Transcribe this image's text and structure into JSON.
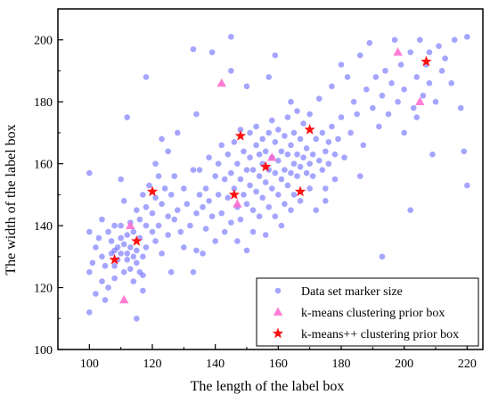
{
  "chart_data": {
    "type": "scatter",
    "xlabel": "The length of the label box",
    "ylabel": "The width of the label box",
    "xlim": [
      90,
      225
    ],
    "ylim": [
      100,
      210
    ],
    "xticks": [
      100,
      120,
      140,
      160,
      180,
      200,
      220
    ],
    "yticks": [
      100,
      120,
      140,
      160,
      180,
      200
    ],
    "grid": false,
    "legend_position": "bottom-right",
    "series": [
      {
        "name": "Data set marker size",
        "marker": "circle",
        "color": "#5b5bff",
        "points": [
          [
            100,
            157
          ],
          [
            100,
            138
          ],
          [
            101,
            128
          ],
          [
            100,
            125
          ],
          [
            100,
            112
          ],
          [
            102,
            118
          ],
          [
            102,
            133
          ],
          [
            103,
            136
          ],
          [
            104,
            130
          ],
          [
            104,
            142
          ],
          [
            104,
            122
          ],
          [
            105,
            127
          ],
          [
            105,
            116
          ],
          [
            106,
            120
          ],
          [
            106,
            138
          ],
          [
            107,
            135
          ],
          [
            107,
            131
          ],
          [
            108,
            127
          ],
          [
            108,
            140
          ],
          [
            108,
            123
          ],
          [
            109,
            133
          ],
          [
            109,
            129
          ],
          [
            110,
            136
          ],
          [
            110,
            131
          ],
          [
            110,
            140
          ],
          [
            111,
            125
          ],
          [
            111,
            134
          ],
          [
            111,
            148
          ],
          [
            112,
            129
          ],
          [
            112,
            137
          ],
          [
            112,
            131
          ],
          [
            113,
            126
          ],
          [
            113,
            141
          ],
          [
            113,
            133
          ],
          [
            114,
            138
          ],
          [
            114,
            130
          ],
          [
            114,
            122
          ],
          [
            115,
            132
          ],
          [
            115,
            145
          ],
          [
            115,
            128
          ],
          [
            115,
            110
          ],
          [
            116,
            136
          ],
          [
            116,
            142
          ],
          [
            116,
            125
          ],
          [
            117,
            130
          ],
          [
            117,
            150
          ],
          [
            117,
            119
          ],
          [
            118,
            133
          ],
          [
            118,
            146
          ],
          [
            118,
            140
          ],
          [
            118,
            188
          ],
          [
            119,
            153
          ],
          [
            120,
            138
          ],
          [
            120,
            144
          ],
          [
            121,
            149
          ],
          [
            121,
            135
          ],
          [
            122,
            156
          ],
          [
            122,
            140
          ],
          [
            123,
            147
          ],
          [
            123,
            131
          ],
          [
            124,
            152
          ],
          [
            125,
            143
          ],
          [
            125,
            137
          ],
          [
            126,
            150
          ],
          [
            126,
            125
          ],
          [
            127,
            142
          ],
          [
            127,
            156
          ],
          [
            128,
            145
          ],
          [
            129,
            138
          ],
          [
            130,
            152
          ],
          [
            130,
            133
          ],
          [
            131,
            147
          ],
          [
            132,
            140
          ],
          [
            133,
            158
          ],
          [
            133,
            125
          ],
          [
            134,
            144
          ],
          [
            134,
            132
          ],
          [
            135,
            150
          ],
          [
            135,
            158
          ],
          [
            136,
            146
          ],
          [
            136,
            131
          ],
          [
            137,
            152
          ],
          [
            137,
            139
          ],
          [
            138,
            162
          ],
          [
            138,
            148
          ],
          [
            139,
            143
          ],
          [
            139,
            196
          ],
          [
            140,
            156
          ],
          [
            140,
            135
          ],
          [
            141,
            150
          ],
          [
            141,
            160
          ],
          [
            142,
            144
          ],
          [
            142,
            166
          ],
          [
            143,
            155
          ],
          [
            143,
            138
          ],
          [
            144,
            149
          ],
          [
            144,
            163
          ],
          [
            145,
            157
          ],
          [
            145,
            141
          ],
          [
            145,
            201
          ],
          [
            146,
            152
          ],
          [
            146,
            167
          ],
          [
            147,
            146
          ],
          [
            147,
            160
          ],
          [
            147,
            135
          ],
          [
            148,
            155
          ],
          [
            148,
            171
          ],
          [
            148,
            142
          ],
          [
            149,
            150
          ],
          [
            149,
            164
          ],
          [
            150,
            158
          ],
          [
            150,
            147
          ],
          [
            150,
            132
          ],
          [
            151,
            162
          ],
          [
            151,
            153
          ],
          [
            151,
            170
          ],
          [
            152,
            145
          ],
          [
            152,
            158
          ],
          [
            152,
            138
          ],
          [
            153,
            166
          ],
          [
            153,
            151
          ],
          [
            153,
            172
          ],
          [
            154,
            156
          ],
          [
            154,
            163
          ],
          [
            154,
            143
          ],
          [
            155,
            160
          ],
          [
            155,
            149
          ],
          [
            155,
            168
          ],
          [
            156,
            154
          ],
          [
            156,
            164
          ],
          [
            156,
            137
          ],
          [
            157,
            158
          ],
          [
            157,
            170
          ],
          [
            157,
            146
          ],
          [
            158,
            152
          ],
          [
            158,
            162
          ],
          [
            158,
            174
          ],
          [
            159,
            157
          ],
          [
            159,
            143
          ],
          [
            159,
            167
          ],
          [
            160,
            161
          ],
          [
            160,
            150
          ],
          [
            160,
            171
          ],
          [
            161,
            155
          ],
          [
            161,
            164
          ],
          [
            161,
            140
          ],
          [
            162,
            158
          ],
          [
            162,
            169
          ],
          [
            162,
            147
          ],
          [
            163,
            163
          ],
          [
            163,
            153
          ],
          [
            163,
            175
          ],
          [
            164,
            157
          ],
          [
            164,
            166
          ],
          [
            164,
            145
          ],
          [
            165,
            160
          ],
          [
            165,
            170
          ],
          [
            165,
            150
          ],
          [
            166,
            163
          ],
          [
            166,
            156
          ],
          [
            166,
            177
          ],
          [
            167,
            159
          ],
          [
            167,
            168
          ],
          [
            167,
            148
          ],
          [
            168,
            162
          ],
          [
            168,
            173
          ],
          [
            169,
            157
          ],
          [
            169,
            165
          ],
          [
            170,
            160
          ],
          [
            170,
            152
          ],
          [
            170,
            176
          ],
          [
            171,
            163
          ],
          [
            171,
            156
          ],
          [
            172,
            168
          ],
          [
            172,
            145
          ],
          [
            173,
            161
          ],
          [
            173,
            181
          ],
          [
            174,
            158
          ],
          [
            174,
            170
          ],
          [
            175,
            164
          ],
          [
            175,
            152
          ],
          [
            176,
            167
          ],
          [
            176,
            160
          ],
          [
            177,
            185
          ],
          [
            177,
            172
          ],
          [
            178,
            163
          ],
          [
            178,
            155
          ],
          [
            179,
            168
          ],
          [
            180,
            175
          ],
          [
            180,
            192
          ],
          [
            181,
            162
          ],
          [
            182,
            188
          ],
          [
            183,
            170
          ],
          [
            184,
            180
          ],
          [
            185,
            176
          ],
          [
            186,
            195
          ],
          [
            187,
            166
          ],
          [
            188,
            184
          ],
          [
            189,
            199
          ],
          [
            190,
            178
          ],
          [
            191,
            188
          ],
          [
            192,
            172
          ],
          [
            193,
            182
          ],
          [
            194,
            190
          ],
          [
            195,
            176
          ],
          [
            196,
            186
          ],
          [
            197,
            200
          ],
          [
            198,
            180
          ],
          [
            199,
            192
          ],
          [
            200,
            184
          ],
          [
            200,
            170
          ],
          [
            202,
            196
          ],
          [
            203,
            178
          ],
          [
            204,
            188
          ],
          [
            204,
            175
          ],
          [
            205,
            200
          ],
          [
            206,
            182
          ],
          [
            207,
            192
          ],
          [
            208,
            186
          ],
          [
            208,
            196
          ],
          [
            209,
            163
          ],
          [
            210,
            180
          ],
          [
            211,
            198
          ],
          [
            212,
            190
          ],
          [
            213,
            194
          ],
          [
            215,
            186
          ],
          [
            216,
            200
          ],
          [
            218,
            178
          ],
          [
            219,
            164
          ],
          [
            220,
            201
          ],
          [
            220,
            153
          ],
          [
            193,
            130
          ],
          [
            202,
            145
          ],
          [
            175,
            148
          ],
          [
            186,
            156
          ],
          [
            145,
            190
          ],
          [
            128,
            170
          ],
          [
            134,
            176
          ],
          [
            112,
            175
          ],
          [
            108,
            132
          ],
          [
            117,
            124
          ],
          [
            121,
            160
          ],
          [
            123,
            168
          ],
          [
            150,
            185
          ],
          [
            159,
            195
          ],
          [
            164,
            180
          ],
          [
            133,
            197
          ],
          [
            157,
            188
          ],
          [
            110,
            155
          ],
          [
            125,
            164
          ]
        ]
      },
      {
        "name": "k-means clustering prior box",
        "marker": "triangle",
        "color": "#ff66cc",
        "points": [
          [
            111,
            116
          ],
          [
            113,
            140
          ],
          [
            142,
            186
          ],
          [
            147,
            147
          ],
          [
            158,
            162
          ],
          [
            198,
            196
          ],
          [
            205,
            180
          ]
        ]
      },
      {
        "name": "k-means++ clustering prior box",
        "marker": "star",
        "color": "#ff1111",
        "points": [
          [
            108,
            129
          ],
          [
            115,
            135
          ],
          [
            120,
            151
          ],
          [
            146,
            150
          ],
          [
            148,
            169
          ],
          [
            156,
            159
          ],
          [
            167,
            151
          ],
          [
            170,
            171
          ],
          [
            207,
            193
          ]
        ]
      }
    ]
  }
}
